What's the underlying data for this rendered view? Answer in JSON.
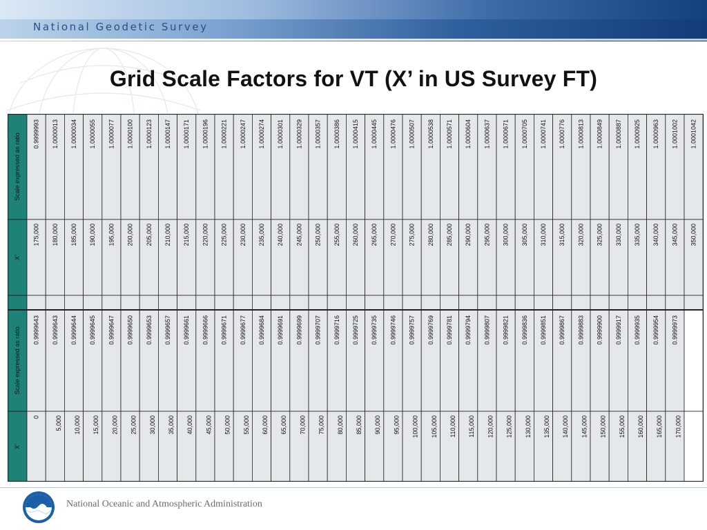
{
  "header": {
    "banner_title": "National Geodetic Survey"
  },
  "slide": {
    "title": "Grid Scale Factors for VT (X’ in US Survey FT)"
  },
  "table": {
    "label_scale": "Scale expressed as ratio",
    "label_x": "X’",
    "top_scale": [
      "0.9999993",
      "1.0000013",
      "1.0000034",
      "1.0000055",
      "1.0000077",
      "1.0000100",
      "1.0000123",
      "1.0000147",
      "1.0000171",
      "1.0000196",
      "1.0000221",
      "1.0000247",
      "1.0000274",
      "1.0000301",
      "1.0000329",
      "1.0000357",
      "1.0000386",
      "1.0000415",
      "1.0000445",
      "1.0000476",
      "1.0000507",
      "1.0000538",
      "1.0000571",
      "1.0000604",
      "1.0000637",
      "1.0000671",
      "1.0000705",
      "1.0000741",
      "1.0000776",
      "1.0000813",
      "1.0000849",
      "1.0000887",
      "1.0000925",
      "1.0000963",
      "1.0001002",
      "1.0001042"
    ],
    "top_x": [
      "175,000",
      "180,000",
      "185,000",
      "190,000",
      "195,000",
      "200,000",
      "205,000",
      "210,000",
      "215,000",
      "220,000",
      "225,000",
      "230,000",
      "235,000",
      "240,000",
      "245,000",
      "250,000",
      "255,000",
      "260,000",
      "265,000",
      "270,000",
      "275,000",
      "280,000",
      "285,000",
      "290,000",
      "295,000",
      "300,000",
      "305,000",
      "310,000",
      "315,000",
      "320,000",
      "325,000",
      "330,000",
      "335,000",
      "340,000",
      "345,000",
      "350,000"
    ],
    "bottom_scale": [
      "0.9999643",
      "0.9999643",
      "0.9999644",
      "0.9999645",
      "0.9999647",
      "0.9999650",
      "0.9999653",
      "0.9999657",
      "0.9999661",
      "0.9999666",
      "0.9999671",
      "0.9999677",
      "0.9999684",
      "0.9999691",
      "0.9999699",
      "0.9999707",
      "0.9999716",
      "0.9999725",
      "0.9999735",
      "0.9999746",
      "0.9999757",
      "0.9999769",
      "0.9999781",
      "0.9999794",
      "0.9999807",
      "0.9999821",
      "0.9999836",
      "0.9999851",
      "0.9999867",
      "0.9999883",
      "0.9999900",
      "0.9999917",
      "0.9999935",
      "0.9999954",
      "0.9999973"
    ],
    "bottom_x": [
      "0",
      "5,000",
      "10,000",
      "15,000",
      "20,000",
      "25,000",
      "30,000",
      "35,000",
      "40,000",
      "45,000",
      "50,000",
      "55,000",
      "60,000",
      "65,000",
      "70,000",
      "75,000",
      "80,000",
      "85,000",
      "90,000",
      "95,000",
      "100,000",
      "105,000",
      "110,000",
      "115,000",
      "120,000",
      "125,000",
      "130,000",
      "135,000",
      "140,000",
      "145,000",
      "150,000",
      "155,000",
      "160,000",
      "165,000",
      "170,000"
    ]
  },
  "footer": {
    "agency": "National Oceanic and Atmospheric Administration",
    "logo_text": "NOAA"
  },
  "colors": {
    "header_cell": "#1f8276",
    "cell": "#e4e8eb",
    "border": "#222222",
    "banner_dark": "#123c78"
  }
}
